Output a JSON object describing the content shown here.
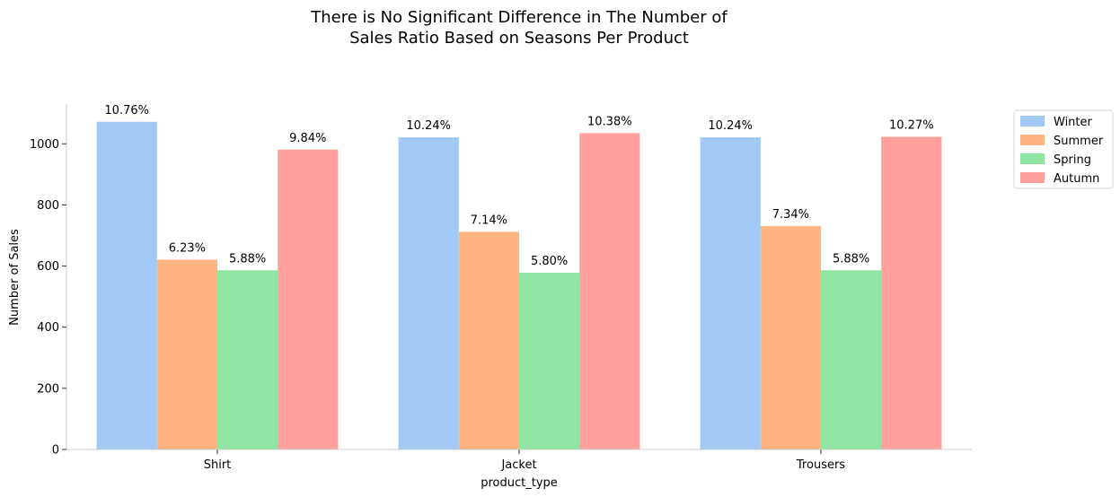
{
  "chart_data": {
    "type": "bar",
    "title_lines": [
      "There is No Significant Difference in The Number of",
      "Sales Ratio Based on Seasons Per Product"
    ],
    "xlabel": "product_type",
    "ylabel": "Number of Sales",
    "categories": [
      "Shirt",
      "Jacket",
      "Trousers"
    ],
    "ylim": [
      0,
      1130
    ],
    "yticks": [
      0,
      200,
      400,
      600,
      800,
      1000
    ],
    "grid": false,
    "legend_position": "upper-right-outside",
    "series": [
      {
        "name": "Winter",
        "color": "#a1c9f4",
        "values": [
          1072,
          1021,
          1021
        ],
        "labels": [
          "10.76%",
          "10.24%",
          "10.24%"
        ]
      },
      {
        "name": "Summer",
        "color": "#ffb482",
        "values": [
          621,
          712,
          731
        ],
        "labels": [
          "6.23%",
          "7.14%",
          "7.34%"
        ]
      },
      {
        "name": "Spring",
        "color": "#8de5a1",
        "values": [
          586,
          578,
          586
        ],
        "labels": [
          "5.88%",
          "5.80%",
          "5.88%"
        ]
      },
      {
        "name": "Autumn",
        "color": "#ff9f9b",
        "values": [
          981,
          1035,
          1023
        ],
        "labels": [
          "9.84%",
          "10.38%",
          "10.27%"
        ]
      }
    ]
  }
}
